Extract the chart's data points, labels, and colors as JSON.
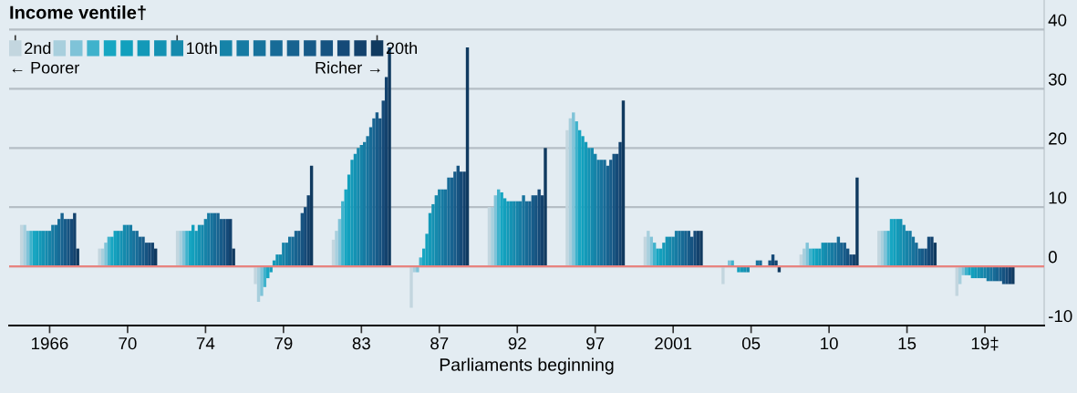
{
  "chart_data": {
    "type": "bar",
    "categories": [
      "1966",
      "70",
      "74",
      "79",
      "83",
      "87",
      "92",
      "97",
      "2001",
      "05",
      "10",
      "15",
      "19‡"
    ],
    "xlabel": "Parliaments beginning",
    "legend_title": "Income ventile†",
    "annotations": [
      "← Poorer",
      "Richer →"
    ],
    "ylim": [
      -10,
      45
    ],
    "yticks": [
      -10,
      0,
      10,
      20,
      30,
      40
    ],
    "grid": "y",
    "legend": "top left",
    "ref_lines": [
      {
        "axis": "y",
        "value": 0,
        "label": null,
        "color": "#e8837f"
      }
    ],
    "series": [
      {
        "name": "2nd",
        "color": "#c3d6df",
        "values": [
          7,
          3,
          6,
          -3,
          4.5,
          -7,
          10,
          23,
          5,
          -3,
          2,
          6,
          -5
        ]
      },
      {
        "name": null,
        "color": "#a8cfdd",
        "values": [
          7,
          3,
          6,
          -6,
          6,
          -1,
          10,
          25,
          6,
          0,
          3,
          6,
          -3
        ]
      },
      {
        "name": null,
        "color": "#7fc3d8",
        "values": [
          6,
          4,
          6,
          -5,
          8,
          -1,
          12,
          26,
          5,
          1,
          4,
          6,
          -1.5
        ]
      },
      {
        "name": null,
        "color": "#3fb2cc",
        "values": [
          6,
          5,
          6,
          -3.5,
          11,
          1.5,
          13,
          24.5,
          4,
          1,
          3,
          6,
          -1.5
        ]
      },
      {
        "name": null,
        "color": "#17a6c2",
        "values": [
          6,
          5,
          6,
          -2,
          13,
          3,
          12.5,
          23,
          3,
          0,
          3,
          8,
          -1.5
        ]
      },
      {
        "name": null,
        "color": "#12a0bd",
        "values": [
          6,
          6,
          7,
          -1,
          15.5,
          5.5,
          11.5,
          22,
          3,
          -1,
          3,
          8,
          -2
        ]
      },
      {
        "name": null,
        "color": "#1399b8",
        "values": [
          6,
          6,
          6,
          1,
          18,
          9,
          11,
          21,
          4,
          -1,
          3,
          8,
          -2
        ]
      },
      {
        "name": null,
        "color": "#1492b3",
        "values": [
          6,
          6,
          7,
          2,
          19,
          10.5,
          11,
          20,
          5,
          -1,
          4,
          8,
          -2
        ]
      },
      {
        "name": "10th",
        "color": "#158aad",
        "values": [
          6,
          7,
          7,
          2,
          20,
          12,
          11,
          20,
          5,
          -1,
          4,
          7,
          -2
        ]
      },
      {
        "name": null,
        "color": "#1683a8",
        "values": [
          6,
          7,
          8,
          4,
          20.5,
          13,
          11,
          19,
          5,
          0,
          4,
          6,
          -2
        ]
      },
      {
        "name": null,
        "color": "#167ba3",
        "values": [
          7,
          7,
          9,
          4,
          21,
          13,
          11,
          18,
          6,
          0,
          4,
          6,
          -2.5
        ]
      },
      {
        "name": null,
        "color": "#17739d",
        "values": [
          7,
          6,
          9,
          5,
          22,
          13,
          12,
          18,
          6,
          1,
          4,
          5,
          -2.5
        ]
      },
      {
        "name": null,
        "color": "#176b97",
        "values": [
          8,
          6,
          9,
          5,
          23.5,
          15,
          11,
          18,
          6,
          1,
          5,
          4,
          -2.5
        ]
      },
      {
        "name": null,
        "color": "#176390",
        "values": [
          9,
          5,
          9,
          6,
          25,
          15,
          11,
          17,
          6,
          0,
          4,
          3,
          -2.5
        ]
      },
      {
        "name": null,
        "color": "#175b89",
        "values": [
          8,
          5,
          8,
          6,
          26,
          16,
          12,
          18,
          6,
          0,
          4,
          3,
          -2.5
        ]
      },
      {
        "name": null,
        "color": "#165381",
        "values": [
          8,
          4,
          8,
          9,
          25,
          17,
          12,
          19,
          5,
          1,
          3,
          3,
          -3
        ]
      },
      {
        "name": null,
        "color": "#154a78",
        "values": [
          8,
          4,
          8,
          10,
          28,
          16,
          13,
          19,
          6,
          2,
          2,
          5,
          -3
        ]
      },
      {
        "name": null,
        "color": "#13426d",
        "values": [
          9,
          4,
          8,
          12,
          32,
          16,
          12,
          21,
          6,
          1,
          2,
          5,
          -3
        ]
      },
      {
        "name": "20th",
        "color": "#103a60",
        "values": [
          3,
          3,
          3,
          17,
          37,
          37,
          20,
          28,
          6,
          -1,
          15,
          4,
          -3
        ]
      }
    ]
  }
}
